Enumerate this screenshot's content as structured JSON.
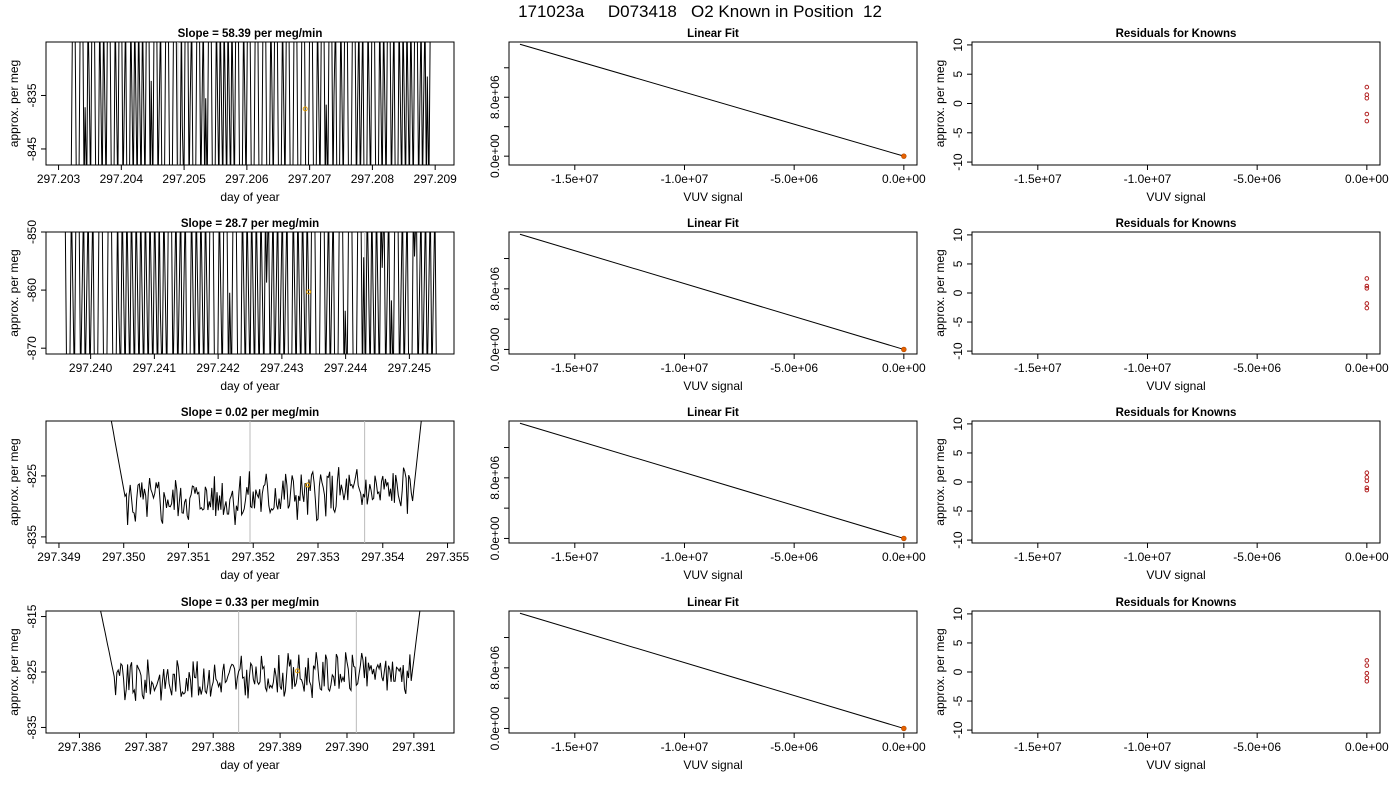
{
  "figure": {
    "title": "171023a     D073418   O2 Known in Position  12",
    "colors": {
      "trace": "#000000",
      "marker": "#e69f00",
      "residual": "#b22222",
      "fit_point": "#e66100",
      "ref_line": "#bbbbbb"
    }
  },
  "chart_data": [
    {
      "type": "line",
      "panel": "series-1",
      "title": "Slope =  58.39  per meg/min",
      "xlabel": "day of year",
      "ylabel": "approx. per meg",
      "xlim": [
        297.2028,
        297.2093
      ],
      "ylim": [
        -848,
        -825
      ],
      "xticks": [
        "297.203",
        "297.204",
        "297.205",
        "297.206",
        "297.207",
        "297.208",
        "297.209"
      ],
      "yticks": [
        "-835",
        "-845"
      ],
      "ytick_values": [
        -835,
        -845
      ],
      "regime": "spikes",
      "x_range": [
        297.2032,
        297.2089
      ],
      "seed": 11,
      "density": 46,
      "ref_lines": [
        297.2049
      ],
      "marker": [
        297.20693,
        -837.5
      ]
    },
    {
      "type": "line",
      "panel": "series-2",
      "title": "Slope =  28.7  per meg/min",
      "xlabel": "day of year",
      "ylabel": "approx. per meg",
      "xlim": [
        297.2393,
        297.2457
      ],
      "ylim": [
        -871,
        -850
      ],
      "xticks": [
        "297.240",
        "297.241",
        "297.242",
        "297.243",
        "297.244",
        "297.245"
      ],
      "yticks": [
        "-850",
        "-860",
        "-870"
      ],
      "ytick_values": [
        -850,
        -860,
        -870
      ],
      "regime": "spikes",
      "x_range": [
        297.2396,
        297.2454
      ],
      "seed": 27,
      "density": 40,
      "ref_lines": [
        297.2443
      ],
      "marker": [
        297.24342,
        -860.3
      ]
    },
    {
      "type": "line",
      "panel": "series-3",
      "title": "Slope =  0.02  per meg/min",
      "xlabel": "day of year",
      "ylabel": "approx. per meg",
      "xlim": [
        297.3488,
        297.3551
      ],
      "ylim": [
        -836,
        -816
      ],
      "xticks": [
        "297.349",
        "297.350",
        "297.351",
        "297.352",
        "297.353",
        "297.354",
        "297.355"
      ],
      "yticks": [
        "-825",
        "-835"
      ],
      "ytick_values": [
        -825,
        -835
      ],
      "regime": "noisy",
      "x_range": [
        297.3498,
        297.3546
      ],
      "seed": 5,
      "base": -829.5,
      "amp": 2.2,
      "ref_lines": [
        297.35195,
        297.35372
      ],
      "marker": [
        297.35284,
        -826.5
      ]
    },
    {
      "type": "line",
      "panel": "series-4",
      "title": "Slope =  0.33  per meg/min",
      "xlabel": "day of year",
      "ylabel": "approx. per meg",
      "xlim": [
        297.3855,
        297.3916
      ],
      "ylim": [
        -836,
        -814
      ],
      "xticks": [
        "297.386",
        "297.387",
        "297.388",
        "297.389",
        "297.390",
        "297.391"
      ],
      "yticks": [
        "-815",
        "-825",
        "-835"
      ],
      "ytick_values": [
        -815,
        -825,
        -835
      ],
      "regime": "noisy",
      "x_range": [
        297.3863,
        297.3911
      ],
      "seed": 9,
      "base": -827.0,
      "amp": 2.0,
      "ref_lines": [
        297.38838,
        297.39014
      ],
      "marker": [
        297.38926,
        -824.8
      ]
    },
    {
      "type": "line",
      "panel": "fit-1",
      "title": "Linear Fit",
      "xlabel": "VUV signal",
      "ylabel": "",
      "xlim": [
        -18000000.0,
        600000.0
      ],
      "ylim": [
        -1200000.0,
        15500000.0
      ],
      "xticks": [
        "-1.5e+07",
        "-1.0e+07",
        "-5.0e+06",
        "0.0e+00"
      ],
      "xtick_values": [
        -15000000.0,
        -10000000.0,
        -5000000.0,
        0
      ],
      "yticks": [
        "0.0e+00",
        "8.0e+06"
      ],
      "ytick_values": [
        0,
        8000000.0
      ],
      "line": [
        [
          -17500000.0,
          15200000.0
        ],
        [
          0,
          0
        ]
      ],
      "point": [
        0,
        0
      ]
    },
    {
      "type": "line",
      "panel": "fit-2",
      "title": "Linear Fit",
      "xlabel": "VUV signal",
      "ylabel": "",
      "xlim": [
        -18000000.0,
        600000.0
      ],
      "ylim": [
        -600000.0,
        15500000.0
      ],
      "xticks": [
        "-1.5e+07",
        "-1.0e+07",
        "-5.0e+06",
        "0.0e+00"
      ],
      "xtick_values": [
        -15000000.0,
        -10000000.0,
        -5000000.0,
        0
      ],
      "yticks": [
        "0.0e+00",
        "8.0e+06"
      ],
      "ytick_values": [
        0,
        8000000.0
      ],
      "line": [
        [
          -17500000.0,
          15200000.0
        ],
        [
          0,
          0
        ]
      ],
      "point": [
        0,
        0
      ]
    },
    {
      "type": "line",
      "panel": "fit-3",
      "title": "Linear Fit",
      "xlabel": "VUV signal",
      "ylabel": "",
      "xlim": [
        -18000000.0,
        600000.0
      ],
      "ylim": [
        -600000.0,
        15500000.0
      ],
      "xticks": [
        "-1.5e+07",
        "-1.0e+07",
        "-5.0e+06",
        "0.0e+00"
      ],
      "xtick_values": [
        -15000000.0,
        -10000000.0,
        -5000000.0,
        0
      ],
      "yticks": [
        "0.0e+00",
        "8.0e+06"
      ],
      "ytick_values": [
        0,
        8000000.0
      ],
      "line": [
        [
          -17500000.0,
          15200000.0
        ],
        [
          0,
          0
        ]
      ],
      "point": [
        0,
        0
      ]
    },
    {
      "type": "line",
      "panel": "fit-4",
      "title": "Linear Fit",
      "xlabel": "VUV signal",
      "ylabel": "",
      "xlim": [
        -18000000.0,
        600000.0
      ],
      "ylim": [
        -600000.0,
        15500000.0
      ],
      "xticks": [
        "-1.5e+07",
        "-1.0e+07",
        "-5.0e+06",
        "0.0e+00"
      ],
      "xtick_values": [
        -15000000.0,
        -10000000.0,
        -5000000.0,
        0
      ],
      "yticks": [
        "0.0e+00",
        "8.0e+06"
      ],
      "ytick_values": [
        0,
        8000000.0
      ],
      "line": [
        [
          -17500000.0,
          15200000.0
        ],
        [
          0,
          0
        ]
      ],
      "point": [
        0,
        0
      ]
    },
    {
      "type": "scatter",
      "panel": "residual-1",
      "title": "Residuals for Knowns",
      "xlabel": "VUV signal",
      "ylabel": "approx. per meg",
      "xlim": [
        -18000000.0,
        600000.0
      ],
      "ylim": [
        -10.5,
        10.5
      ],
      "xticks": [
        "-1.5e+07",
        "-1.0e+07",
        "-5.0e+06",
        "0.0e+00"
      ],
      "xtick_values": [
        -15000000.0,
        -10000000.0,
        -5000000.0,
        0
      ],
      "yticks": [
        "-10",
        "-5",
        "0",
        "5",
        "10"
      ],
      "ytick_values": [
        -10,
        -5,
        0,
        5,
        10
      ],
      "x": [
        0,
        0,
        0,
        0,
        0
      ],
      "y": [
        2.8,
        1.5,
        0.9,
        -1.8,
        -3.0
      ]
    },
    {
      "type": "scatter",
      "panel": "residual-2",
      "title": "Residuals for Knowns",
      "xlabel": "VUV signal",
      "ylabel": "approx. per meg",
      "xlim": [
        -18000000.0,
        600000.0
      ],
      "ylim": [
        -10.5,
        10.5
      ],
      "xticks": [
        "-1.5e+07",
        "-1.0e+07",
        "-5.0e+06",
        "0.0e+00"
      ],
      "xtick_values": [
        -15000000.0,
        -10000000.0,
        -5000000.0,
        0
      ],
      "yticks": [
        "-10",
        "-5",
        "0",
        "5",
        "10"
      ],
      "ytick_values": [
        -10,
        -5,
        0,
        5,
        10
      ],
      "x": [
        0,
        0,
        0,
        0,
        0
      ],
      "y": [
        2.5,
        1.2,
        0.8,
        -1.8,
        -2.6
      ]
    },
    {
      "type": "scatter",
      "panel": "residual-3",
      "title": "Residuals for Knowns",
      "xlabel": "VUV signal",
      "ylabel": "approx. per meg",
      "xlim": [
        -18000000.0,
        600000.0
      ],
      "ylim": [
        -10.5,
        10.5
      ],
      "xticks": [
        "-1.5e+07",
        "-1.0e+07",
        "-5.0e+06",
        "0.0e+00"
      ],
      "xtick_values": [
        -15000000.0,
        -10000000.0,
        -5000000.0,
        0
      ],
      "yticks": [
        "-10",
        "-5",
        "0",
        "5",
        "10"
      ],
      "ytick_values": [
        -10,
        -5,
        0,
        5,
        10
      ],
      "x": [
        0,
        0,
        0,
        0,
        0
      ],
      "y": [
        1.6,
        0.8,
        0.2,
        -1.0,
        -1.4
      ]
    },
    {
      "type": "scatter",
      "panel": "residual-4",
      "title": "Residuals for Knowns",
      "xlabel": "VUV signal",
      "ylabel": "approx. per meg",
      "xlim": [
        -18000000.0,
        600000.0
      ],
      "ylim": [
        -10.5,
        10.5
      ],
      "xticks": [
        "-1.5e+07",
        "-1.0e+07",
        "-5.0e+06",
        "0.0e+00"
      ],
      "xtick_values": [
        -15000000.0,
        -10000000.0,
        -5000000.0,
        0
      ],
      "yticks": [
        "-10",
        "-5",
        "0",
        "5",
        "10"
      ],
      "ytick_values": [
        -10,
        -5,
        0,
        5,
        10
      ],
      "x": [
        0,
        0,
        0,
        0,
        0
      ],
      "y": [
        2.0,
        1.1,
        -0.2,
        -1.0,
        -1.6
      ]
    }
  ]
}
